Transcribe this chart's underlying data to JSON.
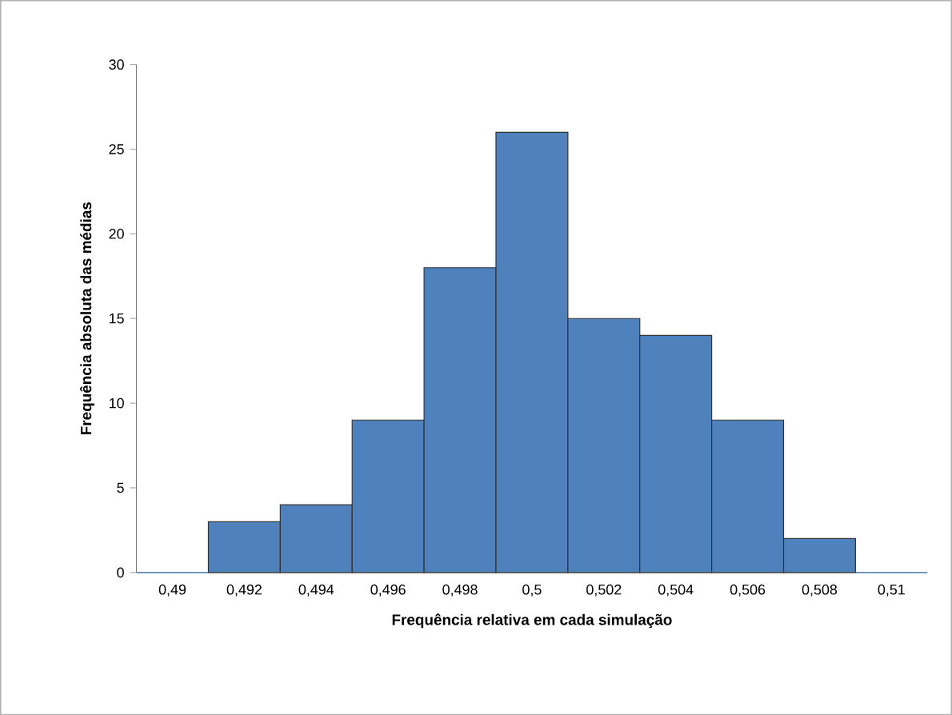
{
  "chart_data": {
    "type": "bar",
    "xlabel": "Frequência relativa em cada simulação",
    "ylabel": "Frequência absoluta das médias",
    "categories": [
      "0,49",
      "0,492",
      "0,494",
      "0,496",
      "0,498",
      "0,5",
      "0,502",
      "0,504",
      "0,506",
      "0,508",
      "0,51"
    ],
    "values": [
      0,
      3,
      4,
      9,
      18,
      26,
      15,
      14,
      9,
      2,
      0
    ],
    "color": "#4f81bd",
    "ylim": [
      0,
      30
    ],
    "yticks": [
      0,
      5,
      10,
      15,
      20,
      25,
      30
    ],
    "grid": false
  }
}
